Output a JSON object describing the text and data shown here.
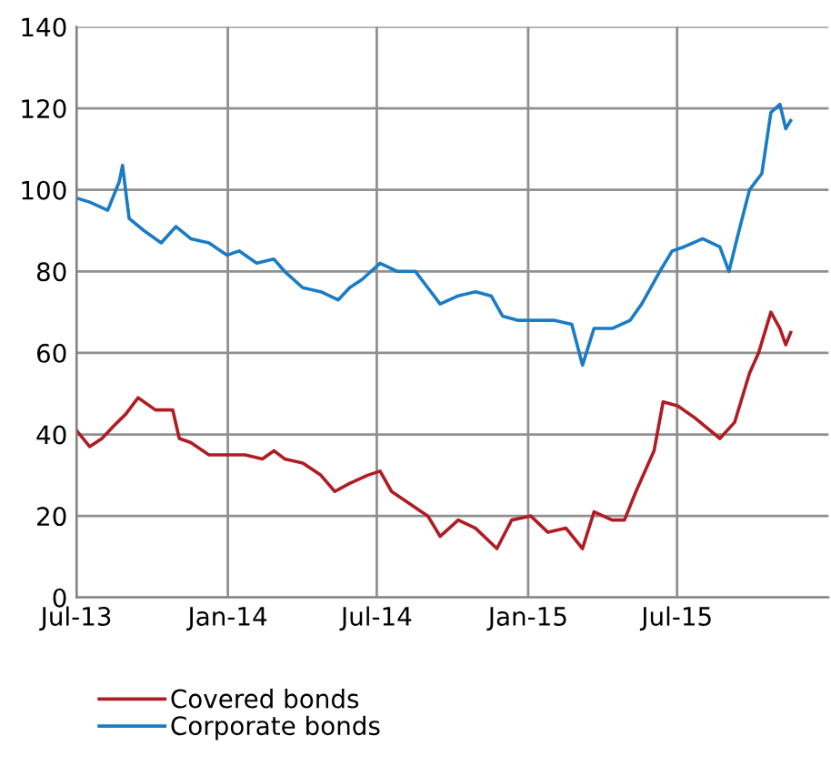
{
  "chart_data": {
    "type": "line",
    "xlim": [
      "2013-07-01",
      "2016-01-01"
    ],
    "ylim": [
      0,
      140
    ],
    "yticks": [
      0,
      20,
      40,
      60,
      80,
      100,
      120,
      140
    ],
    "xticks": [
      {
        "value": "2013-07-01",
        "label": "Jul-13"
      },
      {
        "value": "2014-01-01",
        "label": "Jan-14"
      },
      {
        "value": "2014-07-01",
        "label": "Jul-14"
      },
      {
        "value": "2015-01-01",
        "label": "Jan-15"
      },
      {
        "value": "2015-07-01",
        "label": "Jul-15"
      }
    ],
    "grid": true,
    "legend": "bottom left",
    "line_style": "solid",
    "marker": "none",
    "series": [
      {
        "name": "Covered bonds",
        "color": "#b01c24",
        "x": [
          "2013-07-01",
          "2013-07-17",
          "2013-08-01",
          "2013-08-15",
          "2013-08-30",
          "2013-09-14",
          "2013-10-05",
          "2013-10-26",
          "2013-11-03",
          "2013-11-17",
          "2013-12-09",
          "2013-12-31",
          "2014-01-22",
          "2014-02-12",
          "2014-02-26",
          "2014-03-11",
          "2014-04-02",
          "2014-04-24",
          "2014-05-11",
          "2014-05-29",
          "2014-06-20",
          "2014-07-05",
          "2014-07-19",
          "2014-08-10",
          "2014-09-01",
          "2014-09-16",
          "2014-10-08",
          "2014-10-29",
          "2014-11-24",
          "2014-12-12",
          "2015-01-04",
          "2015-01-25",
          "2015-02-16",
          "2015-03-08",
          "2015-03-22",
          "2015-04-13",
          "2015-04-28",
          "2015-05-12",
          "2015-06-03",
          "2015-06-14",
          "2015-07-02",
          "2015-07-23",
          "2015-08-22",
          "2015-09-09",
          "2015-09-27",
          "2015-10-08",
          "2015-10-23",
          "2015-11-03",
          "2015-11-10",
          "2015-11-16"
        ],
        "values": [
          41,
          37,
          39,
          42,
          45,
          49,
          46,
          46,
          39,
          38,
          35,
          35,
          35,
          34,
          36,
          34,
          33,
          30,
          26,
          28,
          30,
          31,
          26,
          23,
          20,
          15,
          19,
          17,
          12,
          19,
          20,
          16,
          17,
          12,
          21,
          19,
          19,
          26,
          36,
          48,
          47,
          44,
          39,
          43,
          55,
          60,
          70,
          66,
          62,
          65
        ]
      },
      {
        "name": "Corporate bonds",
        "color": "#1a7cc4",
        "x": [
          "2013-07-01",
          "2013-07-17",
          "2013-08-08",
          "2013-08-22",
          "2013-08-26",
          "2013-09-03",
          "2013-09-21",
          "2013-10-12",
          "2013-10-30",
          "2013-11-17",
          "2013-12-09",
          "2013-12-31",
          "2014-01-15",
          "2014-02-05",
          "2014-02-26",
          "2014-03-11",
          "2014-04-02",
          "2014-04-24",
          "2014-05-15",
          "2014-05-29",
          "2014-06-13",
          "2014-07-05",
          "2014-07-26",
          "2014-08-17",
          "2014-09-01",
          "2014-09-16",
          "2014-10-08",
          "2014-10-29",
          "2014-11-17",
          "2014-12-01",
          "2014-12-19",
          "2015-01-11",
          "2015-02-01",
          "2015-02-23",
          "2015-03-08",
          "2015-03-22",
          "2015-04-13",
          "2015-05-05",
          "2015-05-19",
          "2015-06-10",
          "2015-06-25",
          "2015-07-09",
          "2015-08-01",
          "2015-08-22",
          "2015-09-02",
          "2015-09-13",
          "2015-09-27",
          "2015-10-12",
          "2015-10-23",
          "2015-11-03",
          "2015-11-10",
          "2015-11-16"
        ],
        "values": [
          98,
          97,
          95,
          102,
          106,
          93,
          90,
          87,
          91,
          88,
          87,
          84,
          85,
          82,
          83,
          80,
          76,
          75,
          73,
          76,
          78,
          82,
          80,
          80,
          76,
          72,
          74,
          75,
          74,
          69,
          68,
          68,
          68,
          67,
          57,
          66,
          66,
          68,
          72,
          80,
          85,
          86,
          88,
          86,
          80,
          89,
          100,
          104,
          119,
          121,
          115,
          117
        ]
      }
    ]
  }
}
